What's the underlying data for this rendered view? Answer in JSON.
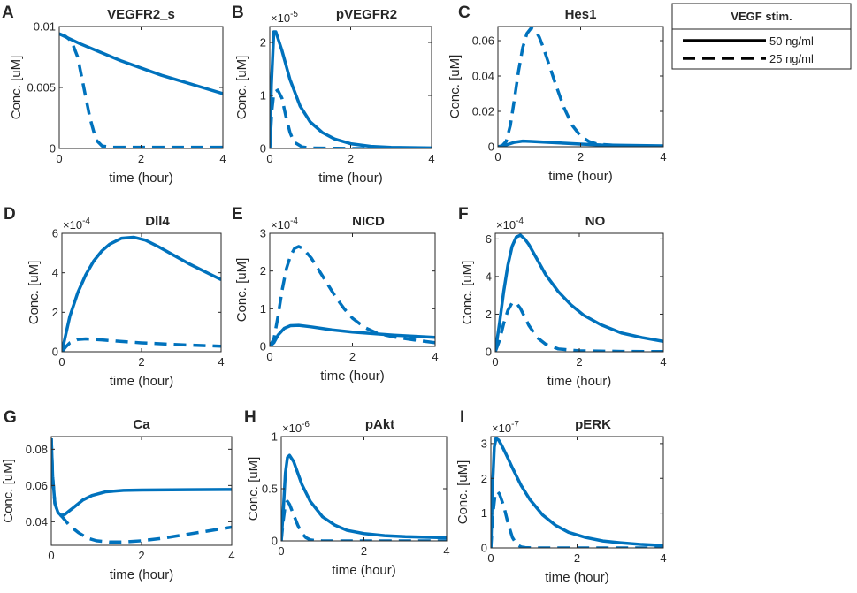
{
  "figure": {
    "legend": {
      "title": "VEGF stim.",
      "entries": [
        {
          "label": "50 ng/ml",
          "style": "solid"
        },
        {
          "label": "25 ng/ml",
          "style": "dashed"
        }
      ]
    },
    "line_color": "#0072BD"
  },
  "chart_data": [
    {
      "letter": "A",
      "type": "line",
      "title": "VEGFR2_s",
      "xlabel": "time (hour)",
      "ylabel": "Conc. [uM]",
      "xlim": [
        0,
        4
      ],
      "ylim": [
        0,
        0.01
      ],
      "exponent": null,
      "xticks": [
        0,
        2,
        4
      ],
      "xtick_labels": [
        "0",
        "2",
        "4"
      ],
      "yticks": [
        0,
        0.005,
        0.01
      ],
      "ytick_labels": [
        "0",
        "0.005",
        "0.01"
      ],
      "series": [
        {
          "name": "50 ng/ml",
          "style": "solid",
          "x": [
            0,
            0.25,
            0.5,
            1,
            1.5,
            2,
            2.5,
            3,
            3.5,
            4
          ],
          "y": [
            0.0094,
            0.009,
            0.0086,
            0.0079,
            0.0072,
            0.0066,
            0.006,
            0.0055,
            0.005,
            0.0045
          ]
        },
        {
          "name": "25 ng/ml",
          "style": "dashed",
          "x": [
            0,
            0.15,
            0.3,
            0.45,
            0.6,
            0.75,
            0.9,
            1.05,
            1.3,
            2,
            3,
            4
          ],
          "y": [
            0.0094,
            0.0092,
            0.0088,
            0.0075,
            0.005,
            0.0025,
            0.0007,
            0.0002,
            0.0001,
            0.0001,
            0.0001,
            0.0001
          ]
        }
      ]
    },
    {
      "letter": "B",
      "type": "line",
      "title": "pVEGFR2",
      "xlabel": "time (hour)",
      "ylabel": "Conc. [uM]",
      "xlim": [
        0,
        4
      ],
      "ylim": [
        0,
        2.3
      ],
      "exponent": "-5",
      "xticks": [
        0,
        2,
        4
      ],
      "xtick_labels": [
        "0",
        "2",
        "4"
      ],
      "yticks": [
        0,
        1,
        2
      ],
      "ytick_labels": [
        "0",
        "1",
        "2"
      ],
      "series": [
        {
          "name": "50 ng/ml",
          "style": "solid",
          "x": [
            0,
            0.04,
            0.1,
            0.15,
            0.3,
            0.5,
            0.75,
            1,
            1.3,
            1.6,
            2,
            2.5,
            3,
            4
          ],
          "y": [
            0,
            1.2,
            2.2,
            2.2,
            1.85,
            1.3,
            0.8,
            0.5,
            0.3,
            0.18,
            0.09,
            0.04,
            0.02,
            0.01
          ]
        },
        {
          "name": "25 ng/ml",
          "style": "dashed",
          "x": [
            0,
            0.05,
            0.1,
            0.2,
            0.3,
            0.4,
            0.5,
            0.6,
            0.8,
            1,
            2,
            4
          ],
          "y": [
            0,
            0.7,
            1.05,
            1.1,
            0.95,
            0.6,
            0.3,
            0.12,
            0.03,
            0.01,
            0,
            0
          ]
        }
      ]
    },
    {
      "letter": "C",
      "type": "line",
      "title": "Hes1",
      "xlabel": "time (hour)",
      "ylabel": "Conc. [uM]",
      "xlim": [
        0,
        4
      ],
      "ylim": [
        0,
        0.068
      ],
      "exponent": null,
      "xticks": [
        0,
        2,
        4
      ],
      "xtick_labels": [
        "0",
        "2",
        "4"
      ],
      "yticks": [
        0,
        0.02,
        0.04,
        0.06
      ],
      "ytick_labels": [
        "0",
        "0.02",
        "0.04",
        "0.06"
      ],
      "series": [
        {
          "name": "50 ng/ml",
          "style": "solid",
          "x": [
            0,
            0.2,
            0.4,
            0.6,
            0.8,
            1.2,
            1.6,
            2,
            2.5,
            3,
            4
          ],
          "y": [
            0,
            0.001,
            0.0025,
            0.0032,
            0.003,
            0.0025,
            0.002,
            0.0015,
            0.001,
            0.0008,
            0.0005
          ]
        },
        {
          "name": "25 ng/ml",
          "style": "dashed",
          "x": [
            0,
            0.1,
            0.2,
            0.3,
            0.4,
            0.5,
            0.6,
            0.7,
            0.8,
            0.9,
            1.0,
            1.1,
            1.2,
            1.4,
            1.6,
            1.8,
            2.0,
            2.2,
            2.4,
            3,
            4
          ],
          "y": [
            0,
            0.0005,
            0.003,
            0.012,
            0.027,
            0.043,
            0.056,
            0.064,
            0.067,
            0.066,
            0.062,
            0.056,
            0.049,
            0.035,
            0.022,
            0.012,
            0.006,
            0.003,
            0.0015,
            0.0005,
            0.0002
          ]
        }
      ]
    },
    {
      "letter": "D",
      "type": "line",
      "title": "Dll4",
      "xlabel": "time (hour)",
      "ylabel": "Conc. [uM]",
      "xlim": [
        0,
        4
      ],
      "ylim": [
        0,
        6
      ],
      "exponent": "-4",
      "xticks": [
        0,
        2,
        4
      ],
      "xtick_labels": [
        "0",
        "2",
        "4"
      ],
      "yticks": [
        0,
        2,
        4,
        6
      ],
      "ytick_labels": [
        "0",
        "2",
        "4",
        "6"
      ],
      "series": [
        {
          "name": "50 ng/ml",
          "style": "solid",
          "x": [
            0,
            0.1,
            0.2,
            0.4,
            0.6,
            0.8,
            1.0,
            1.2,
            1.5,
            1.8,
            2.1,
            2.4,
            2.8,
            3.2,
            3.6,
            4
          ],
          "y": [
            0,
            0.9,
            1.8,
            3.0,
            3.9,
            4.6,
            5.1,
            5.45,
            5.75,
            5.8,
            5.65,
            5.35,
            4.9,
            4.45,
            4.05,
            3.65
          ]
        },
        {
          "name": "25 ng/ml",
          "style": "dashed",
          "x": [
            0,
            0.1,
            0.2,
            0.4,
            0.6,
            1.0,
            1.5,
            2,
            3,
            4
          ],
          "y": [
            0,
            0.25,
            0.45,
            0.62,
            0.65,
            0.6,
            0.52,
            0.45,
            0.35,
            0.28
          ]
        }
      ]
    },
    {
      "letter": "E",
      "type": "line",
      "title": "NICD",
      "xlabel": "time (hour)",
      "ylabel": "Conc. [uM]",
      "xlim": [
        0,
        4
      ],
      "ylim": [
        0,
        3
      ],
      "exponent": "-4",
      "xticks": [
        0,
        2,
        4
      ],
      "xtick_labels": [
        "0",
        "2",
        "4"
      ],
      "yticks": [
        0,
        1,
        2,
        3
      ],
      "ytick_labels": [
        "0",
        "1",
        "2",
        "3"
      ],
      "series": [
        {
          "name": "50 ng/ml",
          "style": "solid",
          "x": [
            0,
            0.1,
            0.2,
            0.35,
            0.5,
            0.7,
            1.0,
            1.5,
            2,
            3,
            4
          ],
          "y": [
            0,
            0.1,
            0.3,
            0.48,
            0.55,
            0.56,
            0.52,
            0.44,
            0.38,
            0.3,
            0.24
          ]
        },
        {
          "name": "25 ng/ml",
          "style": "dashed",
          "x": [
            0,
            0.1,
            0.2,
            0.3,
            0.4,
            0.5,
            0.6,
            0.7,
            0.8,
            1.0,
            1.2,
            1.4,
            1.6,
            1.8,
            2.0,
            2.3,
            2.6,
            3,
            3.5,
            4
          ],
          "y": [
            0,
            0.2,
            0.8,
            1.5,
            2.05,
            2.4,
            2.6,
            2.65,
            2.6,
            2.35,
            2.0,
            1.65,
            1.3,
            1.0,
            0.75,
            0.5,
            0.35,
            0.25,
            0.17,
            0.1
          ]
        }
      ]
    },
    {
      "letter": "F",
      "type": "line",
      "title": "NO",
      "xlabel": "time (hour)",
      "ylabel": "Conc. [uM]",
      "xlim": [
        0,
        4
      ],
      "ylim": [
        0,
        6.3
      ],
      "exponent": "-4",
      "xticks": [
        0,
        2,
        4
      ],
      "xtick_labels": [
        "0",
        "2",
        "4"
      ],
      "yticks": [
        0,
        2,
        4,
        6
      ],
      "ytick_labels": [
        "0",
        "2",
        "4",
        "6"
      ],
      "series": [
        {
          "name": "50 ng/ml",
          "style": "solid",
          "x": [
            0,
            0.1,
            0.2,
            0.3,
            0.4,
            0.5,
            0.6,
            0.7,
            0.8,
            1.0,
            1.2,
            1.5,
            1.8,
            2.1,
            2.5,
            3,
            3.5,
            4
          ],
          "y": [
            0,
            1.5,
            3.2,
            4.6,
            5.6,
            6.1,
            6.2,
            6.0,
            5.7,
            4.9,
            4.1,
            3.2,
            2.5,
            1.95,
            1.45,
            1.0,
            0.75,
            0.55
          ]
        },
        {
          "name": "25 ng/ml",
          "style": "dashed",
          "x": [
            0,
            0.1,
            0.2,
            0.3,
            0.4,
            0.5,
            0.6,
            0.7,
            0.8,
            1.0,
            1.2,
            1.5,
            2,
            3,
            4
          ],
          "y": [
            0,
            0.6,
            1.5,
            2.2,
            2.6,
            2.6,
            2.3,
            1.85,
            1.4,
            0.75,
            0.4,
            0.15,
            0.05,
            0.02,
            0.01
          ]
        }
      ]
    },
    {
      "letter": "G",
      "type": "line",
      "title": "Ca",
      "xlabel": "time (hour)",
      "ylabel": "Conc. [uM]",
      "xlim": [
        0,
        4
      ],
      "ylim": [
        0.027,
        0.087
      ],
      "exponent": null,
      "xticks": [
        0,
        2,
        4
      ],
      "xtick_labels": [
        "0",
        "2",
        "4"
      ],
      "yticks": [
        0.04,
        0.06,
        0.08
      ],
      "ytick_labels": [
        "0.04",
        "0.06",
        "0.08"
      ],
      "series": [
        {
          "name": "50 ng/ml",
          "style": "solid",
          "x": [
            0,
            0.03,
            0.08,
            0.15,
            0.22,
            0.3,
            0.4,
            0.5,
            0.7,
            0.9,
            1.2,
            1.6,
            2,
            3,
            4
          ],
          "y": [
            0.086,
            0.065,
            0.05,
            0.045,
            0.0435,
            0.044,
            0.046,
            0.048,
            0.052,
            0.0545,
            0.0565,
            0.0573,
            0.0575,
            0.0577,
            0.0578
          ]
        },
        {
          "name": "25 ng/ml",
          "style": "dashed",
          "x": [
            0,
            0.03,
            0.08,
            0.15,
            0.25,
            0.4,
            0.6,
            0.8,
            1.0,
            1.3,
            1.6,
            2.0,
            2.5,
            3,
            3.5,
            4
          ],
          "y": [
            0.086,
            0.065,
            0.05,
            0.045,
            0.0425,
            0.038,
            0.034,
            0.031,
            0.0295,
            0.0288,
            0.0288,
            0.0295,
            0.031,
            0.033,
            0.035,
            0.037
          ]
        }
      ]
    },
    {
      "letter": "H",
      "type": "line",
      "title": "pAkt",
      "xlabel": "time (hour)",
      "ylabel": "Conc. [uM]",
      "xlim": [
        0,
        4
      ],
      "ylim": [
        0,
        1
      ],
      "exponent": "-6",
      "xticks": [
        0,
        2,
        4
      ],
      "xtick_labels": [
        "0",
        "2",
        "4"
      ],
      "yticks": [
        0,
        0.5,
        1
      ],
      "ytick_labels": [
        "0",
        "0.5",
        "1"
      ],
      "series": [
        {
          "name": "50 ng/ml",
          "style": "solid",
          "x": [
            0,
            0.05,
            0.1,
            0.15,
            0.2,
            0.3,
            0.4,
            0.5,
            0.7,
            1.0,
            1.3,
            1.6,
            2,
            2.5,
            3,
            4
          ],
          "y": [
            0,
            0.3,
            0.65,
            0.8,
            0.82,
            0.76,
            0.65,
            0.54,
            0.38,
            0.23,
            0.15,
            0.1,
            0.07,
            0.05,
            0.04,
            0.03
          ]
        },
        {
          "name": "25 ng/ml",
          "style": "dashed",
          "x": [
            0,
            0.05,
            0.1,
            0.15,
            0.2,
            0.3,
            0.4,
            0.5,
            0.6,
            0.7,
            0.8,
            1.0,
            1.5,
            2,
            4
          ],
          "y": [
            0,
            0.2,
            0.35,
            0.38,
            0.35,
            0.25,
            0.15,
            0.07,
            0.03,
            0.01,
            0.005,
            0,
            0,
            0,
            0
          ]
        }
      ]
    },
    {
      "letter": "I",
      "type": "line",
      "title": "pERK",
      "xlabel": "time (hour)",
      "ylabel": "Conc. [uM]",
      "xlim": [
        0,
        4
      ],
      "ylim": [
        0,
        3.2
      ],
      "exponent": "-7",
      "xticks": [
        0,
        2,
        4
      ],
      "xtick_labels": [
        "0",
        "2",
        "4"
      ],
      "yticks": [
        0,
        1,
        2,
        3
      ],
      "ytick_labels": [
        "0",
        "1",
        "2",
        "3"
      ],
      "series": [
        {
          "name": "50 ng/ml",
          "style": "solid",
          "x": [
            0,
            0.04,
            0.08,
            0.12,
            0.18,
            0.25,
            0.35,
            0.5,
            0.7,
            0.9,
            1.2,
            1.5,
            1.8,
            2.2,
            2.6,
            3,
            3.5,
            4
          ],
          "y": [
            0,
            1.8,
            2.9,
            3.15,
            3.1,
            2.95,
            2.7,
            2.3,
            1.8,
            1.4,
            0.95,
            0.65,
            0.45,
            0.3,
            0.2,
            0.15,
            0.1,
            0.07
          ]
        },
        {
          "name": "25 ng/ml",
          "style": "dashed",
          "x": [
            0,
            0.05,
            0.1,
            0.15,
            0.2,
            0.3,
            0.4,
            0.5,
            0.6,
            0.7,
            0.8,
            1.0,
            1.5,
            2,
            4
          ],
          "y": [
            0,
            1.0,
            1.55,
            1.62,
            1.55,
            1.2,
            0.7,
            0.3,
            0.1,
            0.03,
            0.01,
            0,
            0,
            0,
            0
          ]
        }
      ]
    }
  ]
}
